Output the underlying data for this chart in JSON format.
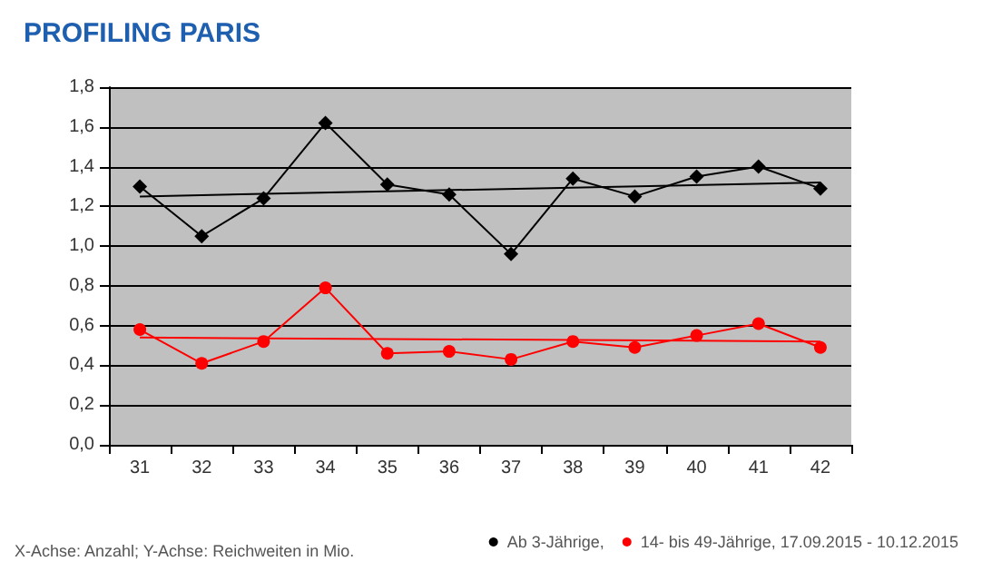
{
  "chart_data": {
    "type": "line",
    "title": "PROFILING PARIS",
    "annotations": [
      "X-Achse: Anzahl; Y-Achse: Reichweiten in Mio."
    ],
    "categories": [
      "31",
      "32",
      "33",
      "34",
      "35",
      "36",
      "37",
      "38",
      "39",
      "40",
      "41",
      "42"
    ],
    "series": [
      {
        "name": "Ab 3-Jährige,",
        "color": "#000000",
        "marker": "diamond",
        "values": [
          1.3,
          1.05,
          1.24,
          1.62,
          1.31,
          1.26,
          0.96,
          1.34,
          1.25,
          1.35,
          1.4,
          1.29
        ]
      },
      {
        "name": "14- bis 49-Jährige, 17.09.2015 - 10.12.2015",
        "color": "#ff0000",
        "marker": "circle",
        "values": [
          0.58,
          0.41,
          0.52,
          0.79,
          0.46,
          0.47,
          0.43,
          0.52,
          0.49,
          0.55,
          0.61,
          0.49
        ]
      },
      {
        "color": "#000000",
        "marker": "none",
        "x": [
          "31",
          "42"
        ],
        "values": [
          1.25,
          1.32
        ]
      },
      {
        "color": "#ff0000",
        "marker": "none",
        "x": [
          "31",
          "42"
        ],
        "values": [
          0.54,
          0.52
        ]
      }
    ],
    "ylim": [
      0,
      1.8
    ],
    "yticks": [
      {
        "value": 0,
        "label": "0,0"
      },
      {
        "value": 0.2,
        "label": "0,2"
      },
      {
        "value": 0.4,
        "label": "0,4"
      },
      {
        "value": 0.6,
        "label": "0,6"
      },
      {
        "value": 0.8,
        "label": "0,8"
      },
      {
        "value": 1.0,
        "label": "1,0"
      },
      {
        "value": 1.2,
        "label": "1,2"
      },
      {
        "value": 1.4,
        "label": "1,4"
      },
      {
        "value": 1.6,
        "label": "1,6"
      },
      {
        "value": 1.8,
        "label": "1,8"
      }
    ],
    "grid": "y",
    "legend": "bottom right",
    "line_style": "solid"
  }
}
